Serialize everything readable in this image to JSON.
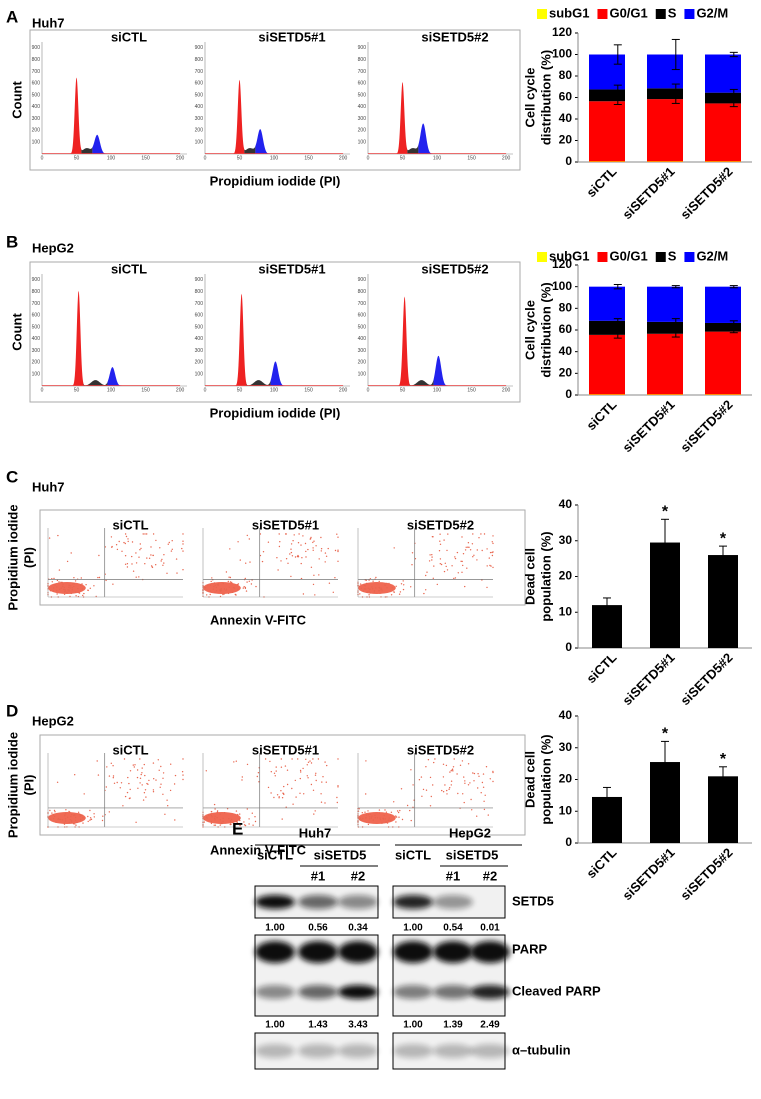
{
  "figure": {
    "panel_A": {
      "label": "A",
      "cell_line": "Huh7",
      "plot_titles": [
        "siCTL",
        "siSETD5#1",
        "siSETD5#2"
      ],
      "y_label": "Count",
      "x_label": "Propidium iodide (PI)"
    },
    "panel_B": {
      "label": "B",
      "cell_line": "HepG2",
      "plot_titles": [
        "siCTL",
        "siSETD5#1",
        "siSETD5#2"
      ],
      "y_label": "Count",
      "x_label": "Propidium iodide (PI)"
    },
    "histogram_axes": {
      "xticks": [
        0,
        50,
        100,
        150,
        200
      ],
      "yticks": [
        100,
        200,
        300,
        400,
        500,
        600,
        700,
        800,
        900
      ]
    },
    "panel_C": {
      "label": "C",
      "cell_line": "Huh7",
      "plot_titles": [
        "siCTL",
        "siSETD5#1",
        "siSETD5#2"
      ],
      "y_label": [
        "Propidium iodide",
        "(PI)"
      ],
      "x_label": "Annexin V-FITC"
    },
    "panel_D": {
      "label": "D",
      "cell_line": "HepG2",
      "plot_titles": [
        "siCTL",
        "siSETD5#1",
        "siSETD5#2"
      ],
      "y_label": [
        "Propidium iodide",
        "(PI)"
      ],
      "x_label": "Annexin V-FITC"
    },
    "panel_E": {
      "label": "E",
      "cell_lines": [
        "Huh7",
        "HepG2"
      ],
      "groups": [
        "siCTL",
        "siSETD5"
      ],
      "knockdown_ids": [
        "#1",
        "#2"
      ],
      "blots": [
        {
          "targets": [
            "SETD5"
          ],
          "quantification": [
            [
              "1.00",
              "0.56",
              "0.34"
            ],
            [
              "1.00",
              "0.54",
              "0.01"
            ]
          ]
        },
        {
          "targets": [
            "PARP",
            "Cleaved PARP"
          ],
          "quantification": [
            [
              "1.00",
              "1.43",
              "3.43"
            ],
            [
              "1.00",
              "1.39",
              "2.49"
            ]
          ]
        },
        {
          "targets": [
            "α–tubulin"
          ]
        }
      ]
    }
  },
  "chart_data": [
    {
      "type": "stacked_bar",
      "y_label": [
        "Cell cycle",
        "distribution (%)"
      ],
      "categories": [
        "siCTL",
        "siSETD5#1",
        "siSETD5#2"
      ],
      "series": [
        {
          "name": "subG1",
          "color": "#ffff00",
          "values": [
            0.5,
            0.5,
            0.5
          ]
        },
        {
          "name": "G0/G1",
          "color": "#ff0000",
          "values": [
            56,
            58,
            54
          ],
          "errors": [
            3,
            4,
            3
          ]
        },
        {
          "name": "S",
          "color": "#000000",
          "values": [
            11,
            10,
            10
          ],
          "errors": [
            4,
            4,
            3
          ]
        },
        {
          "name": "G2/M",
          "color": "#0000ff",
          "values": [
            32.5,
            31.5,
            35.5
          ],
          "errors": [
            9,
            14,
            2
          ]
        }
      ],
      "ylim": [
        0,
        120
      ],
      "yticks": [
        0,
        20,
        40,
        60,
        80,
        100,
        120
      ]
    },
    {
      "type": "stacked_bar",
      "y_label": [
        "Cell cycle",
        "distribution (%)"
      ],
      "categories": [
        "siCTL",
        "siSETD5#1",
        "siSETD5#2"
      ],
      "series": [
        {
          "name": "subG1",
          "color": "#ffff00",
          "values": [
            0.5,
            0.5,
            0.5
          ]
        },
        {
          "name": "G0/G1",
          "color": "#ff0000",
          "values": [
            55,
            56,
            58
          ],
          "errors": [
            3,
            3,
            1
          ]
        },
        {
          "name": "S",
          "color": "#000000",
          "values": [
            13,
            11,
            8
          ],
          "errors": [
            2,
            3,
            2
          ]
        },
        {
          "name": "G2/M",
          "color": "#0000ff",
          "values": [
            31.5,
            32.5,
            33.5
          ],
          "errors": [
            2,
            1,
            1
          ]
        }
      ],
      "ylim": [
        0,
        120
      ],
      "yticks": [
        0,
        20,
        40,
        60,
        80,
        100,
        120
      ]
    },
    {
      "type": "bar",
      "y_label": [
        "Dead cell",
        "population (%)"
      ],
      "categories": [
        "siCTL",
        "siSETD5#1",
        "siSETD5#2"
      ],
      "values": [
        12,
        29.5,
        26
      ],
      "errors": [
        2,
        6.5,
        2.5
      ],
      "significance": [
        null,
        "*",
        "*"
      ],
      "color": "#000000",
      "ylim": [
        0,
        40
      ],
      "yticks": [
        0,
        10,
        20,
        30,
        40
      ]
    },
    {
      "type": "bar",
      "y_label": [
        "Dead cell",
        "population (%)"
      ],
      "categories": [
        "siCTL",
        "siSETD5#1",
        "siSETD5#2"
      ],
      "values": [
        14.5,
        25.5,
        21
      ],
      "errors": [
        3,
        6.5,
        3
      ],
      "significance": [
        null,
        "*",
        "*"
      ],
      "color": "#000000",
      "ylim": [
        0,
        40
      ],
      "yticks": [
        0,
        10,
        20,
        30,
        40
      ]
    }
  ]
}
